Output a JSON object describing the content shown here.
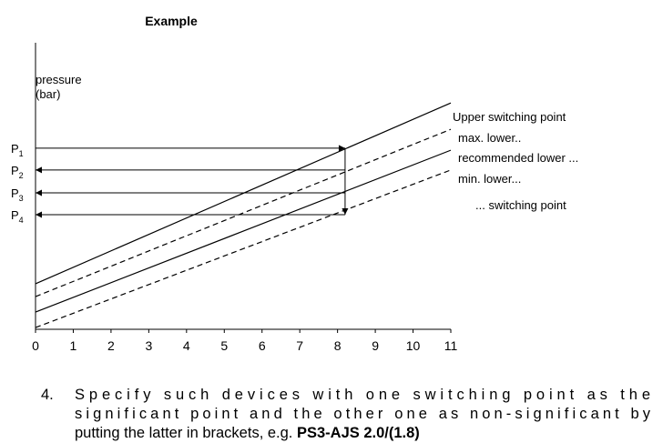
{
  "chart_data": {
    "type": "line",
    "title": "Example",
    "ylabel": [
      "pressure",
      "(bar)"
    ],
    "xlim": [
      0,
      11
    ],
    "xticks": [
      0,
      1,
      2,
      3,
      4,
      5,
      6,
      7,
      8,
      9,
      10,
      11
    ],
    "ylim": [
      0,
      10
    ],
    "x": [
      0,
      11
    ],
    "series": [
      {
        "name": "Upper switching point",
        "color": "#000000",
        "dashed": false,
        "values": [
          1.59,
          7.9
        ]
      },
      {
        "name": "max. lower..",
        "color": "#000000",
        "dashed": true,
        "values": [
          1.14,
          6.98
        ]
      },
      {
        "name": "recommended lower ...",
        "color": "#000000",
        "dashed": false,
        "values": [
          0.6,
          6.25
        ]
      },
      {
        "name": "min. lower...",
        "color": "#000000",
        "dashed": true,
        "values": [
          0.06,
          5.56
        ]
      }
    ],
    "annotation": "... switching point",
    "levels": [
      {
        "label": "P",
        "sub": "1",
        "value": 6.32
      },
      {
        "label": "P",
        "sub": "2",
        "value": 5.56
      },
      {
        "label": "P",
        "sub": "3",
        "value": 4.76
      },
      {
        "label": "P",
        "sub": "4",
        "value": 4.0
      }
    ],
    "arrow_x": 8.2
  },
  "note": {
    "number": "4.",
    "lines": [
      "Specify such devices with one switching point as the",
      "significant point and the other one as non-significant by",
      "putting the latter in brackets, e.g. "
    ],
    "bold": "PS3-AJS 2.0/(1.8)"
  }
}
